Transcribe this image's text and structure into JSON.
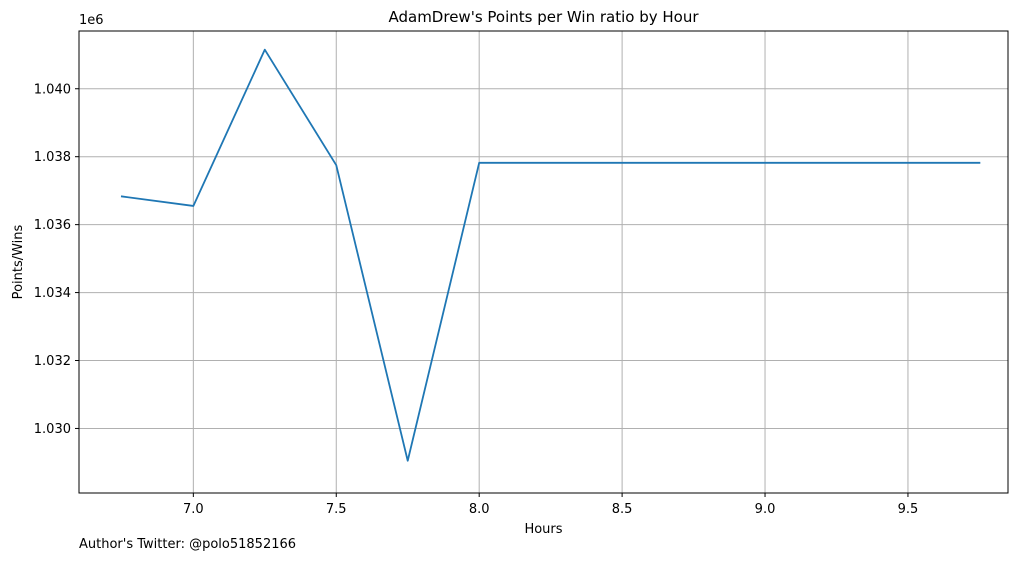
{
  "chart_data": {
    "type": "line",
    "title": "AdamDrew's Points per Win ratio by Hour",
    "xlabel": "Hours",
    "ylabel": "Points/Wins",
    "y_offset_text": "1e6",
    "y_scale_factor": 1000000,
    "xlim": [
      6.6,
      9.85
    ],
    "ylim": [
      1.0281,
      1.0417
    ],
    "x_ticks": [
      7.0,
      7.5,
      8.0,
      8.5,
      9.0,
      9.5
    ],
    "x_tick_labels": [
      "7.0",
      "7.5",
      "8.0",
      "8.5",
      "9.0",
      "9.5"
    ],
    "y_ticks": [
      1.03,
      1.032,
      1.034,
      1.036,
      1.038,
      1.04
    ],
    "y_tick_labels": [
      "1.030",
      "1.032",
      "1.034",
      "1.036",
      "1.038",
      "1.040"
    ],
    "grid": true,
    "series": [
      {
        "x": [
          6.75,
          7.0,
          7.25,
          7.5,
          7.75,
          8.0,
          8.25,
          8.5,
          8.75,
          9.0,
          9.25,
          9.5,
          9.75
        ],
        "values": [
          1.03683,
          1.03655,
          1.04115,
          1.03775,
          1.02905,
          1.03782,
          1.03782,
          1.03782,
          1.03782,
          1.03782,
          1.03782,
          1.03782,
          1.03782
        ],
        "color": "#1f77b4"
      }
    ]
  },
  "footer": {
    "note": "Author's Twitter: @polo51852166"
  }
}
